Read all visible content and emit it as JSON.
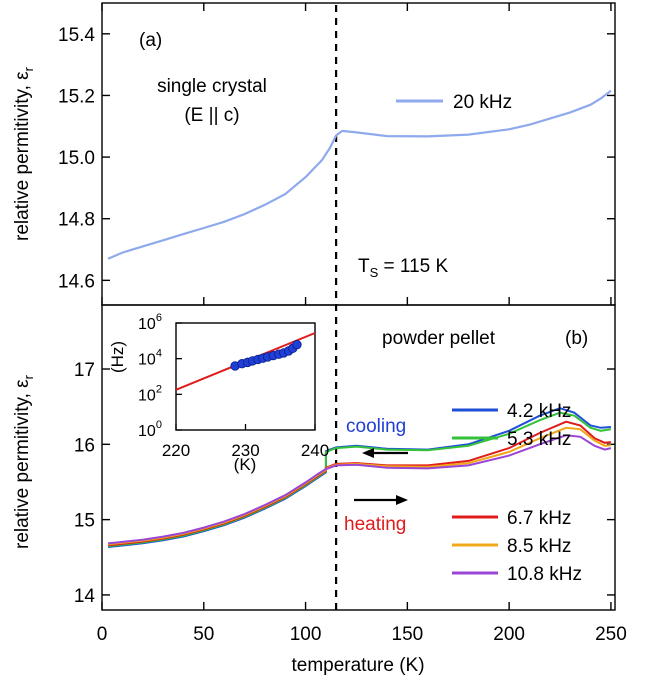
{
  "chart_data": [
    {
      "panel": "(a)",
      "type": "line",
      "ylabel": "relative permitivity, ε",
      "ylabel_sub": "r",
      "xlim": [
        0,
        252
      ],
      "ylim": [
        14.52,
        15.5
      ],
      "yticks": [
        14.6,
        14.8,
        15.0,
        15.2,
        15.4
      ],
      "ytick_labels": [
        "14.6",
        "14.8",
        "15.0",
        "15.2",
        "15.4"
      ],
      "annotations": {
        "panel_label": "(a)",
        "sample_line1": "single crystal",
        "sample_line2": "(E || c)",
        "ts_main": "T",
        "ts_sub": "S",
        "ts_rest": " = 115 K"
      },
      "vline_x": 115,
      "legend": "top-right",
      "series": [
        {
          "name": "20 kHz",
          "color": "#8ea9ec",
          "x": [
            3,
            10,
            20,
            30,
            40,
            50,
            60,
            70,
            80,
            90,
            100,
            108,
            112,
            115,
            118,
            125,
            140,
            160,
            180,
            200,
            210,
            220,
            230,
            240,
            245,
            248,
            250
          ],
          "y": [
            14.67,
            14.69,
            14.71,
            14.73,
            14.75,
            14.77,
            14.79,
            14.815,
            14.845,
            14.88,
            14.935,
            14.99,
            15.03,
            15.07,
            15.085,
            15.08,
            15.068,
            15.067,
            15.073,
            15.09,
            15.105,
            15.125,
            15.145,
            15.17,
            15.19,
            15.205,
            15.215
          ]
        }
      ]
    },
    {
      "panel": "(b)",
      "type": "line",
      "xlabel": "temperature (K)",
      "ylabel": "relative permitivity, ε",
      "ylabel_sub": "r",
      "xlim": [
        0,
        252
      ],
      "ylim": [
        13.8,
        17.85
      ],
      "xticks": [
        0,
        50,
        100,
        150,
        200,
        250
      ],
      "xtick_labels": [
        "0",
        "50",
        "100",
        "150",
        "200",
        "250"
      ],
      "yticks": [
        14,
        15,
        16,
        17
      ],
      "ytick_labels": [
        "14",
        "15",
        "16",
        "17"
      ],
      "annotations": {
        "panel_label": "(b)",
        "sample": "powder pellet",
        "cooling": "cooling",
        "heating": "heating"
      },
      "vline_x": 115,
      "series": [
        {
          "name": "4.2 kHz",
          "color": "#1f4fd6",
          "cool_x": [
            110,
            115,
            125,
            140,
            160,
            180,
            200,
            215,
            225,
            232,
            240,
            245,
            250
          ],
          "cool_y": [
            15.91,
            15.96,
            15.98,
            15.94,
            15.93,
            16.0,
            16.18,
            16.38,
            16.48,
            16.42,
            16.25,
            16.22,
            16.23
          ]
        },
        {
          "name": "5.3 kHz",
          "color": "#35c23a",
          "cool_x": [
            110,
            115,
            125,
            140,
            160,
            180,
            200,
            215,
            225,
            232,
            240,
            245,
            250
          ],
          "cool_y": [
            15.9,
            15.95,
            15.97,
            15.93,
            15.92,
            15.98,
            16.14,
            16.32,
            16.42,
            16.38,
            16.22,
            16.18,
            16.2
          ]
        },
        {
          "name": "6.7 kHz",
          "color": "#e01b1b",
          "heat_x": [
            110,
            115,
            125,
            140,
            160,
            180,
            200,
            215,
            228,
            235,
            242,
            247,
            250
          ],
          "heat_y": [
            15.69,
            15.74,
            15.75,
            15.72,
            15.72,
            15.78,
            15.95,
            16.15,
            16.3,
            16.25,
            16.08,
            16.02,
            16.03
          ]
        },
        {
          "name": "8.5 kHz",
          "color": "#f0a818",
          "heat_x": [
            110,
            115,
            125,
            140,
            160,
            180,
            200,
            215,
            228,
            235,
            242,
            247,
            250
          ],
          "heat_y": [
            15.68,
            15.73,
            15.74,
            15.71,
            15.7,
            15.75,
            15.9,
            16.08,
            16.22,
            16.2,
            16.05,
            15.98,
            15.99
          ]
        },
        {
          "name": "10.8 kHz",
          "color": "#9b45d6",
          "heat_x": [
            110,
            115,
            125,
            140,
            160,
            180,
            200,
            215,
            228,
            235,
            242,
            247,
            250
          ],
          "heat_y": [
            15.67,
            15.72,
            15.73,
            15.69,
            15.68,
            15.72,
            15.85,
            16.0,
            16.12,
            16.1,
            15.98,
            15.93,
            15.95
          ]
        }
      ],
      "shared_low_x": [
        3,
        10,
        20,
        30,
        40,
        50,
        60,
        70,
        80,
        90,
        100,
        106,
        110
      ],
      "shared_low_y": [
        14.66,
        14.68,
        14.71,
        14.75,
        14.8,
        14.87,
        14.95,
        15.05,
        15.17,
        15.3,
        15.47,
        15.58,
        15.65
      ]
    },
    {
      "panel": "inset",
      "type": "scatter",
      "xlabel": "(K)",
      "ylabel": "(Hz)",
      "xlim": [
        220,
        240
      ],
      "ylim_log10": [
        0,
        6
      ],
      "xticks": [
        220,
        230,
        240
      ],
      "xtick_labels": [
        "220",
        "230",
        "240"
      ],
      "ytick_base": "10",
      "ytick_exponents": [
        "0",
        "2",
        "4",
        "6"
      ],
      "points_x": [
        228.5,
        229.5,
        230.3,
        231.0,
        231.8,
        232.5,
        233.2,
        234.0,
        234.8,
        235.5,
        236.2,
        236.8,
        237.4
      ],
      "points_y": [
        3900,
        5200,
        6200,
        7500,
        9000,
        10600,
        12500,
        15000,
        17800,
        21000,
        27000,
        38000,
        61000
      ],
      "fit_x": [
        220,
        240
      ],
      "fit_y": [
        180,
        275000
      ],
      "point_color": "#1f3fd6",
      "fit_color": "#e01b1b"
    }
  ]
}
